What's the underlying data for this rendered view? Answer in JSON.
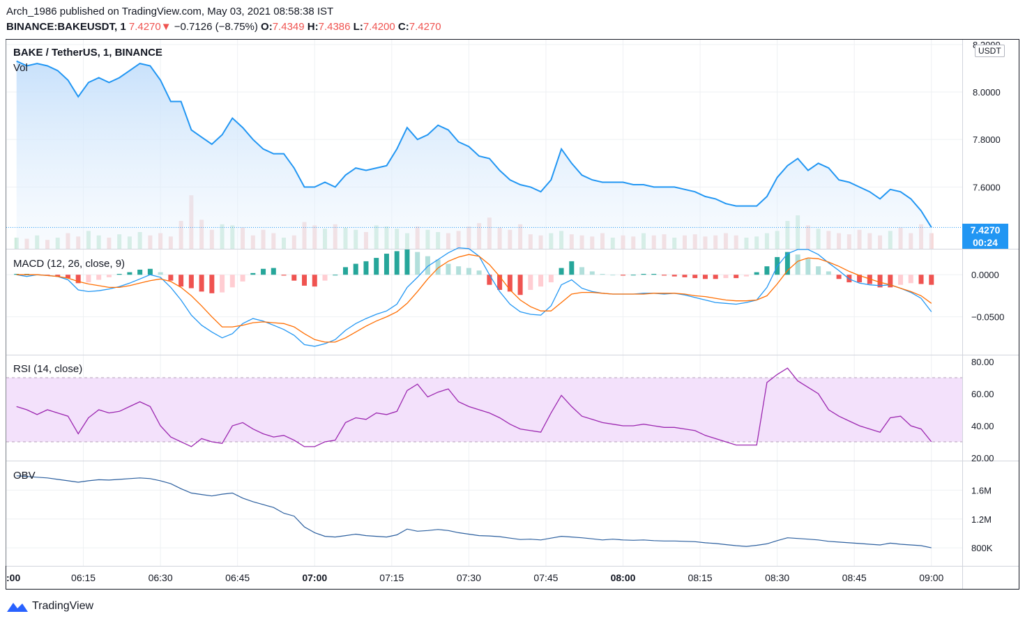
{
  "header": {
    "line1": "Arch_1986 published on TradingView.com, May 03, 2021 08:58:38 IST",
    "symbol": "BINANCE:BAKEUSDT, 1",
    "last": "7.4270",
    "change": "−0.7126 (−8.75%)",
    "o_label": "O:",
    "o_val": "7.4349",
    "h_label": "H:",
    "h_val": "7.4386",
    "l_label": "L:",
    "l_val": "7.4200",
    "c_label": "C:",
    "c_val": "7.4270"
  },
  "colors": {
    "price_line": "#2196f3",
    "up": "#26a69a",
    "down": "#ef5350",
    "macd_line": "#2196f3",
    "signal_line": "#ff6d00",
    "rsi_line": "#9c27b0",
    "rsi_band": "#f3e1fb",
    "obv_line": "#2a5e9e"
  },
  "panes": {
    "price": {
      "title": "BAKE / TetherUS, 1, BINANCE",
      "sub": "Vol",
      "unit": "USDT",
      "badge_price": "7.4270",
      "badge_time": "00:24"
    },
    "macd": {
      "title": "MACD (12, 26, close, 9)"
    },
    "rsi": {
      "title": "RSI (14, close)"
    },
    "obv": {
      "title": "OBV"
    }
  },
  "footer": {
    "brand": "TradingView"
  },
  "chart_data": [
    {
      "type": "area",
      "name": "price",
      "y_ticks": [
        "8.2000",
        "8.0000",
        "7.8000",
        "7.6000"
      ],
      "ylim": [
        7.34,
        8.22
      ],
      "x_ticks": [
        ":00",
        "06:15",
        "06:30",
        "06:45",
        "07:00",
        "07:15",
        "07:30",
        "07:45",
        "08:00",
        "08:15",
        "08:30",
        "08:45",
        "09:00"
      ],
      "x_bold": [
        ":00",
        "07:00",
        "08:00"
      ],
      "x": [
        0,
        2,
        4,
        6,
        8,
        10,
        12,
        14,
        16,
        18,
        20,
        22,
        24,
        26,
        28,
        30,
        32,
        34,
        36,
        38,
        40,
        42,
        44,
        46,
        48,
        50,
        52,
        54,
        56,
        58,
        60,
        62,
        64,
        66,
        68,
        70,
        72,
        74,
        76,
        78,
        80,
        82,
        84,
        86,
        88,
        90,
        92,
        94,
        96,
        98,
        100,
        102,
        104,
        106,
        108,
        110,
        112,
        114,
        116,
        118,
        120,
        122,
        124,
        126,
        128,
        130,
        132,
        134,
        136,
        138,
        140,
        142,
        144,
        146,
        148,
        150,
        152,
        154,
        156,
        158,
        160,
        162,
        164,
        166,
        168,
        170,
        172,
        174,
        176,
        178
      ],
      "close": [
        8.13,
        8.11,
        8.12,
        8.11,
        8.09,
        8.05,
        7.98,
        8.04,
        8.06,
        8.04,
        8.06,
        8.09,
        8.12,
        8.11,
        8.05,
        7.96,
        7.96,
        7.84,
        7.81,
        7.78,
        7.82,
        7.89,
        7.85,
        7.8,
        7.76,
        7.74,
        7.74,
        7.68,
        7.6,
        7.6,
        7.62,
        7.6,
        7.65,
        7.68,
        7.67,
        7.68,
        7.69,
        7.76,
        7.85,
        7.8,
        7.82,
        7.86,
        7.84,
        7.79,
        7.77,
        7.73,
        7.72,
        7.67,
        7.63,
        7.61,
        7.6,
        7.58,
        7.63,
        7.76,
        7.7,
        7.65,
        7.63,
        7.62,
        7.62,
        7.62,
        7.61,
        7.61,
        7.6,
        7.6,
        7.6,
        7.59,
        7.58,
        7.56,
        7.55,
        7.53,
        7.52,
        7.52,
        7.52,
        7.56,
        7.64,
        7.69,
        7.72,
        7.67,
        7.7,
        7.68,
        7.63,
        7.62,
        7.6,
        7.58,
        7.55,
        7.59,
        7.58,
        7.55,
        7.5,
        7.43
      ],
      "volume": [
        0.1,
        0.09,
        0.12,
        0.08,
        0.1,
        0.14,
        0.11,
        0.16,
        0.12,
        0.1,
        0.13,
        0.11,
        0.15,
        0.12,
        0.14,
        0.11,
        0.25,
        0.48,
        0.26,
        0.17,
        0.22,
        0.21,
        0.19,
        0.12,
        0.17,
        0.14,
        0.1,
        0.12,
        0.24,
        0.21,
        0.18,
        0.22,
        0.19,
        0.17,
        0.15,
        0.21,
        0.2,
        0.18,
        0.14,
        0.2,
        0.17,
        0.15,
        0.14,
        0.16,
        0.2,
        0.23,
        0.28,
        0.19,
        0.17,
        0.22,
        0.13,
        0.12,
        0.14,
        0.16,
        0.13,
        0.12,
        0.11,
        0.14,
        0.1,
        0.12,
        0.11,
        0.14,
        0.12,
        0.13,
        0.1,
        0.12,
        0.13,
        0.11,
        0.12,
        0.14,
        0.12,
        0.1,
        0.11,
        0.14,
        0.16,
        0.25,
        0.3,
        0.21,
        0.18,
        0.16,
        0.14,
        0.13,
        0.17,
        0.14,
        0.12,
        0.16,
        0.19,
        0.14,
        0.22,
        0.14
      ],
      "volume_up": [
        true,
        false,
        true,
        false,
        true,
        false,
        false,
        true,
        true,
        false,
        true,
        true,
        true,
        false,
        false,
        false,
        false,
        false,
        false,
        false,
        true,
        true,
        false,
        false,
        false,
        false,
        true,
        false,
        false,
        false,
        true,
        false,
        true,
        true,
        false,
        true,
        true,
        true,
        true,
        false,
        true,
        true,
        false,
        false,
        false,
        false,
        false,
        false,
        false,
        false,
        false,
        false,
        true,
        true,
        false,
        false,
        false,
        false,
        true,
        false,
        false,
        true,
        false,
        false,
        true,
        false,
        false,
        false,
        false,
        false,
        false,
        true,
        true,
        true,
        true,
        true,
        true,
        false,
        true,
        false,
        false,
        false,
        false,
        false,
        false,
        true,
        false,
        false,
        false,
        false
      ]
    },
    {
      "type": "histogram+line",
      "name": "MACD (12, 26, close, 9)",
      "y_ticks": [
        "0.0000",
        "−0.0500"
      ],
      "ylim": [
        -0.095,
        0.03
      ],
      "x": [
        0,
        2,
        4,
        6,
        8,
        10,
        12,
        14,
        16,
        18,
        20,
        22,
        24,
        26,
        28,
        30,
        32,
        34,
        36,
        38,
        40,
        42,
        44,
        46,
        48,
        50,
        52,
        54,
        56,
        58,
        60,
        62,
        64,
        66,
        68,
        70,
        72,
        74,
        76,
        78,
        80,
        82,
        84,
        86,
        88,
        90,
        92,
        94,
        96,
        98,
        100,
        102,
        104,
        106,
        108,
        110,
        112,
        114,
        116,
        118,
        120,
        122,
        124,
        126,
        128,
        130,
        132,
        134,
        136,
        138,
        140,
        142,
        144,
        146,
        148,
        150,
        152,
        154,
        156,
        158,
        160,
        162,
        164,
        166,
        168,
        170,
        172,
        174,
        176,
        178
      ],
      "macd": [
        0.0,
        -0.002,
        0.0,
        -0.001,
        -0.002,
        -0.006,
        -0.018,
        -0.02,
        -0.019,
        -0.017,
        -0.014,
        -0.01,
        -0.005,
        0.0,
        -0.003,
        -0.015,
        -0.03,
        -0.048,
        -0.06,
        -0.068,
        -0.075,
        -0.07,
        -0.058,
        -0.052,
        -0.055,
        -0.06,
        -0.065,
        -0.072,
        -0.083,
        -0.085,
        -0.082,
        -0.077,
        -0.066,
        -0.058,
        -0.052,
        -0.047,
        -0.043,
        -0.035,
        -0.015,
        -0.003,
        0.01,
        0.018,
        0.026,
        0.032,
        0.031,
        0.022,
        0.0,
        -0.02,
        -0.035,
        -0.044,
        -0.047,
        -0.048,
        -0.037,
        -0.012,
        -0.006,
        -0.016,
        -0.02,
        -0.022,
        -0.023,
        -0.023,
        -0.023,
        -0.022,
        -0.022,
        -0.023,
        -0.022,
        -0.024,
        -0.027,
        -0.03,
        -0.033,
        -0.034,
        -0.035,
        -0.033,
        -0.03,
        -0.015,
        0.01,
        0.025,
        0.03,
        0.03,
        0.024,
        0.014,
        0.005,
        -0.005,
        -0.01,
        -0.012,
        -0.013,
        -0.012,
        -0.016,
        -0.021,
        -0.028,
        -0.044
      ],
      "signal": [
        0.0,
        0.0,
        0.0,
        -0.001,
        -0.002,
        -0.004,
        -0.008,
        -0.011,
        -0.013,
        -0.015,
        -0.015,
        -0.013,
        -0.01,
        -0.007,
        -0.005,
        -0.008,
        -0.015,
        -0.025,
        -0.037,
        -0.05,
        -0.062,
        -0.062,
        -0.06,
        -0.057,
        -0.056,
        -0.057,
        -0.058,
        -0.062,
        -0.07,
        -0.077,
        -0.08,
        -0.08,
        -0.075,
        -0.068,
        -0.061,
        -0.055,
        -0.05,
        -0.044,
        -0.034,
        -0.02,
        -0.005,
        0.008,
        0.016,
        0.021,
        0.024,
        0.022,
        0.012,
        -0.002,
        -0.018,
        -0.03,
        -0.038,
        -0.043,
        -0.043,
        -0.033,
        -0.023,
        -0.021,
        -0.021,
        -0.022,
        -0.023,
        -0.023,
        -0.023,
        -0.023,
        -0.022,
        -0.022,
        -0.022,
        -0.023,
        -0.025,
        -0.026,
        -0.028,
        -0.03,
        -0.031,
        -0.031,
        -0.03,
        -0.025,
        -0.011,
        0.005,
        0.016,
        0.02,
        0.019,
        0.015,
        0.01,
        0.004,
        -0.001,
        -0.005,
        -0.009,
        -0.012,
        -0.016,
        -0.02,
        -0.025,
        -0.034
      ],
      "hist": [
        0.001,
        0.001,
        0.0,
        -0.001,
        -0.002,
        -0.004,
        -0.01,
        -0.009,
        -0.006,
        -0.003,
        0.001,
        0.003,
        0.006,
        0.007,
        0.003,
        -0.007,
        -0.014,
        -0.016,
        -0.02,
        -0.022,
        -0.021,
        -0.015,
        -0.008,
        0.002,
        0.007,
        0.008,
        -0.001,
        -0.007,
        -0.013,
        -0.014,
        -0.007,
        0.0,
        0.009,
        0.013,
        0.016,
        0.02,
        0.025,
        0.028,
        0.03,
        0.027,
        0.022,
        0.018,
        0.013,
        0.01,
        0.008,
        0.005,
        -0.012,
        -0.018,
        -0.02,
        -0.024,
        -0.018,
        -0.014,
        -0.009,
        0.008,
        0.016,
        0.009,
        0.004,
        0.001,
        0.0,
        -0.001,
        0.0,
        0.001,
        0.001,
        -0.001,
        -0.002,
        -0.003,
        -0.004,
        -0.005,
        -0.005,
        -0.004,
        -0.004,
        -0.002,
        0.003,
        0.01,
        0.021,
        0.027,
        0.024,
        0.019,
        0.01,
        0.004,
        -0.005,
        -0.009,
        -0.009,
        -0.011,
        -0.015,
        -0.015,
        -0.012,
        -0.01,
        -0.011,
        -0.012
      ]
    },
    {
      "type": "line",
      "name": "RSI (14, close)",
      "y_ticks": [
        "80.00",
        "60.00",
        "40.00",
        "20.00"
      ],
      "ylim": [
        20,
        80
      ],
      "bands": [
        30,
        70
      ],
      "x": [
        0,
        2,
        4,
        6,
        8,
        10,
        12,
        14,
        16,
        18,
        20,
        22,
        24,
        26,
        28,
        30,
        32,
        34,
        36,
        38,
        40,
        42,
        44,
        46,
        48,
        50,
        52,
        54,
        56,
        58,
        60,
        62,
        64,
        66,
        68,
        70,
        72,
        74,
        76,
        78,
        80,
        82,
        84,
        86,
        88,
        90,
        92,
        94,
        96,
        98,
        100,
        102,
        104,
        106,
        108,
        110,
        112,
        114,
        116,
        118,
        120,
        122,
        124,
        126,
        128,
        130,
        132,
        134,
        136,
        138,
        140,
        142,
        144,
        146,
        148,
        150,
        152,
        154,
        156,
        158,
        160,
        162,
        164,
        166,
        168,
        170,
        172,
        174,
        176,
        178
      ],
      "values": [
        52,
        50,
        47,
        50,
        48,
        46,
        35,
        45,
        50,
        48,
        49,
        52,
        55,
        52,
        40,
        33,
        30,
        27,
        32,
        30,
        29,
        40,
        42,
        38,
        35,
        33,
        34,
        31,
        27,
        27,
        30,
        31,
        42,
        45,
        44,
        48,
        47,
        49,
        62,
        66,
        58,
        61,
        63,
        55,
        52,
        50,
        48,
        45,
        41,
        38,
        37,
        36,
        48,
        59,
        52,
        46,
        44,
        42,
        41,
        40,
        40,
        41,
        40,
        39,
        39,
        38,
        37,
        34,
        32,
        30,
        28,
        28,
        28,
        67,
        72,
        76,
        68,
        64,
        60,
        50,
        46,
        43,
        40,
        38,
        36,
        45,
        46,
        40,
        38,
        30
      ]
    },
    {
      "type": "line",
      "name": "OBV",
      "y_ticks": [
        "1.6M",
        "1.2M",
        "800K"
      ],
      "ylim": [
        550000,
        2000000
      ],
      "x": [
        0,
        2,
        4,
        6,
        8,
        10,
        12,
        14,
        16,
        18,
        20,
        22,
        24,
        26,
        28,
        30,
        32,
        34,
        36,
        38,
        40,
        42,
        44,
        46,
        48,
        50,
        52,
        54,
        56,
        58,
        60,
        62,
        64,
        66,
        68,
        70,
        72,
        74,
        76,
        78,
        80,
        82,
        84,
        86,
        88,
        90,
        92,
        94,
        96,
        98,
        100,
        102,
        104,
        106,
        108,
        110,
        112,
        114,
        116,
        118,
        120,
        122,
        124,
        126,
        128,
        130,
        132,
        134,
        136,
        138,
        140,
        142,
        144,
        146,
        148,
        150,
        152,
        154,
        156,
        158,
        160,
        162,
        164,
        166,
        168,
        170,
        172,
        174,
        176,
        178
      ],
      "values": [
        1800000,
        1790000,
        1780000,
        1770000,
        1750000,
        1730000,
        1710000,
        1730000,
        1745000,
        1740000,
        1750000,
        1760000,
        1770000,
        1760000,
        1730000,
        1690000,
        1620000,
        1560000,
        1540000,
        1520000,
        1545000,
        1560000,
        1490000,
        1440000,
        1400000,
        1360000,
        1280000,
        1240000,
        1090000,
        1010000,
        960000,
        950000,
        970000,
        990000,
        970000,
        960000,
        950000,
        980000,
        1060000,
        1030000,
        1040000,
        1055000,
        1040000,
        1010000,
        990000,
        970000,
        965000,
        955000,
        935000,
        915000,
        920000,
        910000,
        935000,
        960000,
        950000,
        940000,
        925000,
        910000,
        920000,
        910000,
        905000,
        910000,
        900000,
        895000,
        895000,
        890000,
        885000,
        870000,
        860000,
        845000,
        830000,
        820000,
        835000,
        855000,
        900000,
        940000,
        930000,
        920000,
        910000,
        890000,
        880000,
        870000,
        860000,
        850000,
        840000,
        865000,
        850000,
        840000,
        830000,
        800000
      ]
    }
  ]
}
